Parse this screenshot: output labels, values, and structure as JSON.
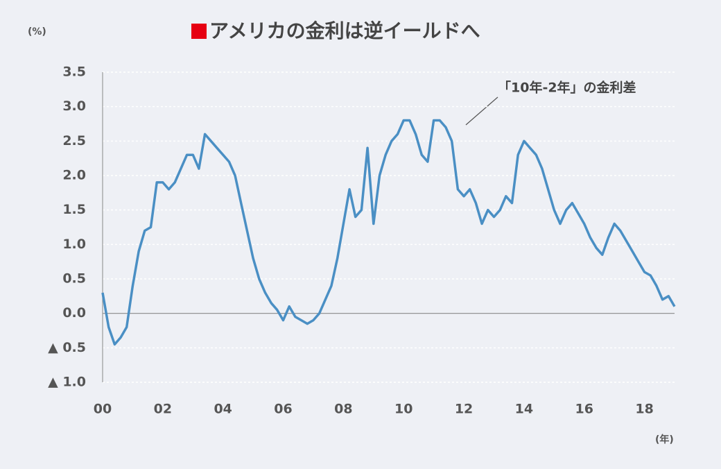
{
  "chart_data": {
    "type": "line",
    "title": "アメリカの金利は逆イールドへ",
    "y_label": "(%)",
    "x_label": "(年)",
    "annotation": "「10年-2年」の金利差",
    "grid": true,
    "xlim": [
      0,
      19
    ],
    "xticks": [
      {
        "value": 0,
        "label": "00"
      },
      {
        "value": 2,
        "label": "02"
      },
      {
        "value": 4,
        "label": "04"
      },
      {
        "value": 6,
        "label": "06"
      },
      {
        "value": 8,
        "label": "08"
      },
      {
        "value": 10,
        "label": "10"
      },
      {
        "value": 12,
        "label": "12"
      },
      {
        "value": 14,
        "label": "14"
      },
      {
        "value": 16,
        "label": "16"
      },
      {
        "value": 18,
        "label": "18"
      }
    ],
    "ylim": [
      -1.0,
      3.5
    ],
    "yticks": [
      {
        "value": 3.5,
        "label": "3.5"
      },
      {
        "value": 3.0,
        "label": "3.0"
      },
      {
        "value": 2.5,
        "label": "2.5"
      },
      {
        "value": 2.0,
        "label": "2.0"
      },
      {
        "value": 1.5,
        "label": "1.5"
      },
      {
        "value": 1.0,
        "label": "1.0"
      },
      {
        "value": 0.5,
        "label": "0.5"
      },
      {
        "value": 0,
        "label": "0.0"
      },
      {
        "value": -0.5,
        "label": "▲ 0.5"
      },
      {
        "value": -1.0,
        "label": "▲ 1.0"
      }
    ],
    "x": [
      0,
      0.2,
      0.4,
      0.6,
      0.8,
      1.0,
      1.2,
      1.4,
      1.6,
      1.8,
      2.0,
      2.2,
      2.4,
      2.6,
      2.8,
      3.0,
      3.2,
      3.4,
      3.6,
      3.8,
      4.0,
      4.2,
      4.4,
      4.6,
      4.8,
      5.0,
      5.2,
      5.4,
      5.6,
      5.8,
      6.0,
      6.2,
      6.4,
      6.6,
      6.8,
      7.0,
      7.2,
      7.4,
      7.6,
      7.8,
      8.0,
      8.2,
      8.4,
      8.6,
      8.8,
      9.0,
      9.2,
      9.4,
      9.6,
      9.8,
      10.0,
      10.2,
      10.4,
      10.6,
      10.8,
      11.0,
      11.2,
      11.4,
      11.6,
      11.8,
      12.0,
      12.2,
      12.4,
      12.6,
      12.8,
      13.0,
      13.2,
      13.4,
      13.6,
      13.8,
      14.0,
      14.2,
      14.4,
      14.6,
      14.8,
      15.0,
      15.2,
      15.4,
      15.6,
      15.8,
      16.0,
      16.2,
      16.4,
      16.6,
      16.8,
      17.0,
      17.2,
      17.4,
      17.6,
      17.8,
      18.0,
      18.2,
      18.4,
      18.6,
      18.8,
      19.0
    ],
    "series": [
      {
        "name": "「10年-2年」の金利差",
        "color": "#4a8fc4",
        "values": [
          0.3,
          -0.2,
          -0.45,
          -0.35,
          -0.2,
          0.4,
          0.9,
          1.2,
          1.25,
          1.9,
          1.9,
          1.8,
          1.9,
          2.1,
          2.3,
          2.3,
          2.1,
          2.6,
          2.5,
          2.4,
          2.3,
          2.2,
          2.0,
          1.6,
          1.2,
          0.8,
          0.5,
          0.3,
          0.15,
          0.05,
          -0.1,
          0.1,
          -0.05,
          -0.1,
          -0.15,
          -0.1,
          0.0,
          0.2,
          0.4,
          0.8,
          1.3,
          1.8,
          1.4,
          1.5,
          2.4,
          1.3,
          2.0,
          2.3,
          2.5,
          2.6,
          2.8,
          2.8,
          2.6,
          2.3,
          2.2,
          2.8,
          2.8,
          2.7,
          2.5,
          1.8,
          1.7,
          1.8,
          1.6,
          1.3,
          1.5,
          1.4,
          1.5,
          1.7,
          1.6,
          2.3,
          2.5,
          2.4,
          2.3,
          2.1,
          1.8,
          1.5,
          1.3,
          1.5,
          1.6,
          1.45,
          1.3,
          1.1,
          0.95,
          0.85,
          1.1,
          1.3,
          1.2,
          1.05,
          0.9,
          0.75,
          0.6,
          0.55,
          0.4,
          0.2,
          0.25,
          0.1
        ]
      }
    ]
  }
}
